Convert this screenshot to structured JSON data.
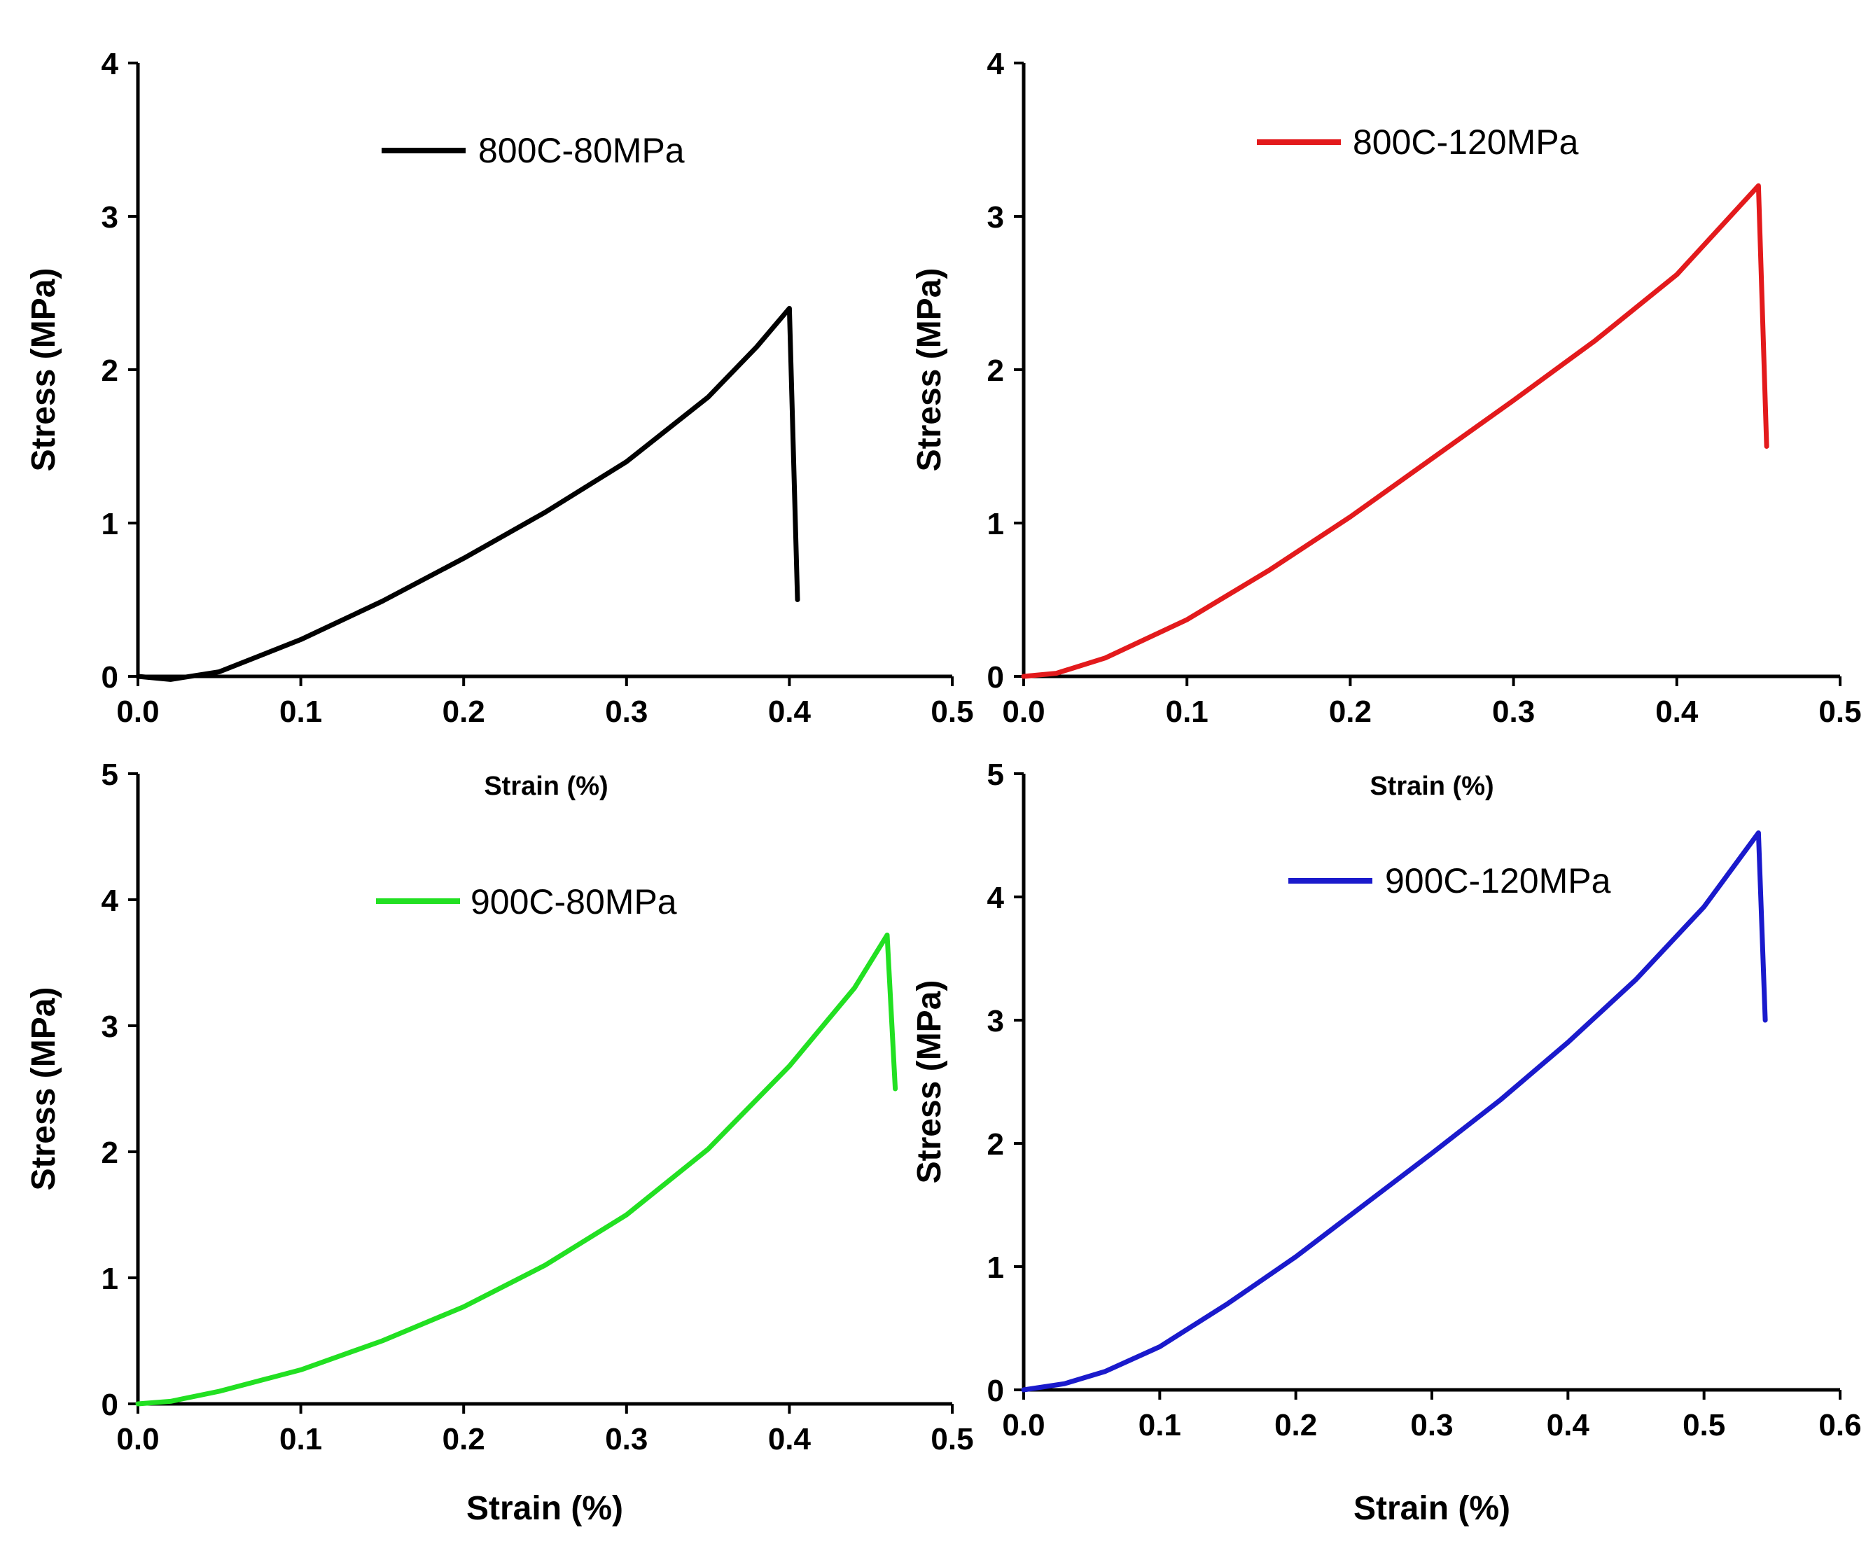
{
  "chart_data": [
    {
      "type": "line",
      "series": [
        {
          "name": "800C-80MPa",
          "color": "#000000",
          "x": [
            0.0,
            0.02,
            0.05,
            0.1,
            0.15,
            0.2,
            0.25,
            0.3,
            0.35,
            0.38,
            0.4,
            0.405
          ],
          "y": [
            0.0,
            -0.02,
            0.03,
            0.24,
            0.49,
            0.77,
            1.07,
            1.4,
            1.82,
            2.15,
            2.4,
            0.5
          ]
        }
      ],
      "xlabel": "Strain (%)",
      "ylabel": "Stress (MPa)",
      "xlim": [
        0,
        0.5
      ],
      "ylim": [
        0,
        4
      ],
      "xticks": [
        "0.0",
        "0.1",
        "0.2",
        "0.3",
        "0.4",
        "0.5"
      ],
      "yticks": [
        "0",
        "1",
        "2",
        "3",
        "4"
      ],
      "legend_position": "top-center"
    },
    {
      "type": "line",
      "series": [
        {
          "name": "800C-120MPa",
          "color": "#e31a1c",
          "x": [
            0.0,
            0.02,
            0.05,
            0.1,
            0.15,
            0.2,
            0.25,
            0.3,
            0.35,
            0.4,
            0.45,
            0.455
          ],
          "y": [
            0.0,
            0.02,
            0.12,
            0.37,
            0.69,
            1.04,
            1.42,
            1.8,
            2.19,
            2.62,
            3.2,
            1.5
          ]
        }
      ],
      "xlabel": "Strain (%)",
      "ylabel": "Stress (MPa)",
      "xlim": [
        0,
        0.5
      ],
      "ylim": [
        0,
        4
      ],
      "xticks": [
        "0.0",
        "0.1",
        "0.2",
        "0.3",
        "0.4",
        "0.5"
      ],
      "yticks": [
        "0",
        "1",
        "2",
        "3",
        "4"
      ],
      "legend_position": "top-center"
    },
    {
      "type": "line",
      "series": [
        {
          "name": "900C-80MPa",
          "color": "#22e022",
          "x": [
            0.0,
            0.02,
            0.05,
            0.1,
            0.15,
            0.2,
            0.25,
            0.3,
            0.35,
            0.4,
            0.44,
            0.46,
            0.465
          ],
          "y": [
            0.0,
            0.02,
            0.1,
            0.27,
            0.5,
            0.77,
            1.1,
            1.5,
            2.02,
            2.68,
            3.3,
            3.72,
            2.5
          ]
        }
      ],
      "xlabel": "Strain (%)",
      "ylabel": "Stress (MPa)",
      "xlim": [
        0,
        0.5
      ],
      "ylim": [
        0,
        5
      ],
      "xticks": [
        "0.0",
        "0.1",
        "0.2",
        "0.3",
        "0.4",
        "0.5"
      ],
      "yticks": [
        "0",
        "1",
        "2",
        "3",
        "4",
        "5"
      ],
      "legend_position": "top-center"
    },
    {
      "type": "line",
      "series": [
        {
          "name": "900C-120MPa",
          "color": "#1a1acc",
          "x": [
            0.0,
            0.03,
            0.06,
            0.1,
            0.15,
            0.2,
            0.25,
            0.3,
            0.35,
            0.4,
            0.45,
            0.5,
            0.54,
            0.545
          ],
          "y": [
            0.0,
            0.05,
            0.15,
            0.35,
            0.7,
            1.08,
            1.5,
            1.92,
            2.35,
            2.82,
            3.33,
            3.92,
            4.52,
            3.0
          ]
        }
      ],
      "xlabel": "Strain (%)",
      "ylabel": "Stress (MPa)",
      "xlim": [
        0,
        0.6
      ],
      "ylim": [
        0,
        5
      ],
      "xticks": [
        "0.0",
        "0.1",
        "0.2",
        "0.3",
        "0.4",
        "0.5",
        "0.6"
      ],
      "yticks": [
        "0",
        "1",
        "2",
        "3",
        "4",
        "5"
      ],
      "legend_position": "top-center"
    }
  ]
}
